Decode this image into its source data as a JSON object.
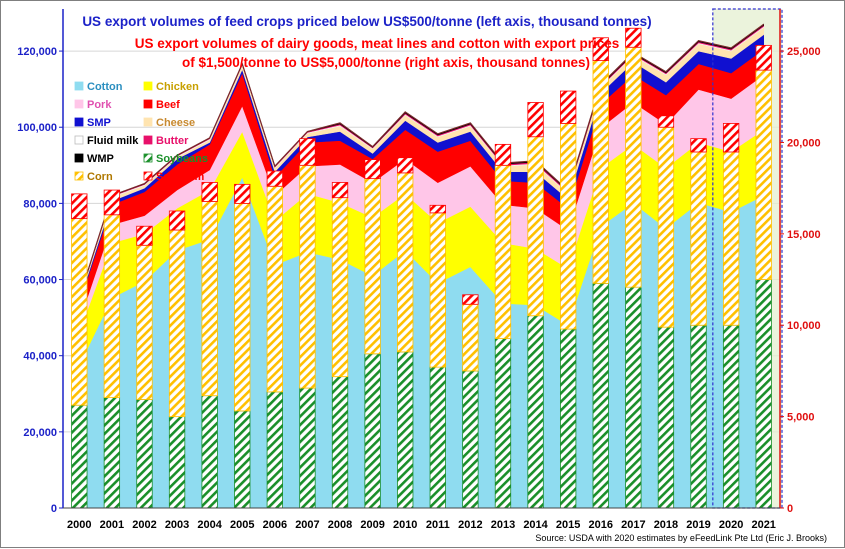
{
  "chart_data": {
    "type": "area",
    "title": "US export volumes of feed crops priced below US$500/tonne (left axis, thousand tonnes)",
    "title2_line1": "US export volumes of dairy goods, meat lines and cotton with export prices",
    "title2_line2": "of $1,500/tonne to US$5,000/tonne (right axis, thousand tonnes)",
    "source": "Source: USDA with 2020 estimates by eFeedLink Pte Ltd (Eric J. Brooks)",
    "categories": [
      "2000",
      "2001",
      "2002",
      "2003",
      "2004",
      "2005",
      "2006",
      "2007",
      "2008",
      "2009",
      "2010",
      "2011",
      "2012",
      "2013",
      "2014",
      "2015",
      "2016",
      "2017",
      "2018",
      "2019",
      "2020",
      "2021"
    ],
    "left_axis": {
      "min": 0,
      "max": 130000,
      "ticks": [
        0,
        20000,
        40000,
        60000,
        80000,
        100000,
        120000
      ],
      "tick_labels": [
        "0",
        "20,000",
        "40,000",
        "60,000",
        "80,000",
        "100,000",
        "120,000"
      ]
    },
    "right_axis": {
      "min": 0,
      "max": 27083,
      "ticks": [
        0,
        5000,
        10000,
        15000,
        20000,
        25000
      ],
      "tick_labels": [
        "0",
        "5,000",
        "10,000",
        "15,000",
        "20,000",
        "25,000"
      ]
    },
    "area_series": [
      {
        "name": "Cotton",
        "color": "#8fdcf0",
        "values": [
          7800,
          11500,
          12400,
          14100,
          14700,
          18100,
          13300,
          14000,
          13600,
          12700,
          14100,
          12300,
          13200,
          11200,
          11100,
          10000,
          15400,
          16700,
          15300,
          16700,
          16200,
          17100
        ]
      },
      {
        "name": "Chicken",
        "color": "#ffff00",
        "values": [
          1800,
          3000,
          2600,
          2300,
          2700,
          2500,
          2400,
          3200,
          3100,
          3200,
          3100,
          3300,
          3300,
          3300,
          3100,
          3100,
          3200,
          3200,
          3300,
          3300,
          3300,
          3600
        ]
      },
      {
        "name": "Pork",
        "color": "#ffc6e8",
        "values": [
          600,
          1000,
          1000,
          1000,
          1100,
          1400,
          1400,
          1500,
          2100,
          1900,
          1900,
          2200,
          2200,
          2100,
          2200,
          2100,
          2200,
          2300,
          2400,
          2900,
          2900,
          3000
        ]
      },
      {
        "name": "Beef",
        "color": "#ff0000",
        "values": [
          1000,
          1100,
          1300,
          1400,
          1400,
          1800,
          1000,
          1300,
          1300,
          1300,
          1600,
          1700,
          1400,
          1300,
          1400,
          1200,
          1300,
          1500,
          1600,
          1400,
          1400,
          1400
        ]
      },
      {
        "name": "SMP",
        "color": "#1010d0",
        "values": [
          100,
          200,
          200,
          300,
          100,
          200,
          300,
          300,
          500,
          300,
          500,
          500,
          500,
          500,
          600,
          500,
          600,
          700,
          700,
          700,
          800,
          800
        ]
      },
      {
        "name": "Cheese",
        "color": "#ffe4b0",
        "values": [
          100,
          200,
          150,
          100,
          150,
          200,
          200,
          200,
          300,
          250,
          300,
          300,
          300,
          300,
          400,
          300,
          300,
          350,
          400,
          400,
          400,
          400
        ]
      },
      {
        "name": "Fluid milk",
        "color": "#ffffff",
        "values": [
          50,
          50,
          50,
          50,
          50,
          50,
          50,
          50,
          50,
          50,
          50,
          50,
          50,
          50,
          50,
          50,
          50,
          50,
          50,
          50,
          50,
          50
        ]
      },
      {
        "name": "Butter",
        "color": "#e8106a",
        "values": [
          30,
          30,
          30,
          30,
          30,
          30,
          30,
          30,
          60,
          30,
          60,
          60,
          60,
          60,
          80,
          60,
          60,
          60,
          60,
          60,
          60,
          60
        ]
      },
      {
        "name": "WMP",
        "color": "#000000",
        "values": [
          20,
          20,
          20,
          20,
          20,
          20,
          20,
          20,
          60,
          40,
          60,
          60,
          60,
          60,
          60,
          60,
          60,
          60,
          60,
          60,
          60,
          60
        ]
      }
    ],
    "bar_series": [
      {
        "name": "Soybeans",
        "color": "#1a8f2a",
        "values": [
          27000,
          29000,
          28500,
          24000,
          29500,
          25500,
          30500,
          31500,
          34500,
          40500,
          41000,
          37000,
          36000,
          44500,
          50500,
          47000,
          59000,
          58000,
          47500,
          48000,
          48000,
          60000
        ]
      },
      {
        "name": "Corn",
        "color": "#ffc000",
        "values": [
          49000,
          48000,
          40500,
          49000,
          51000,
          54500,
          54000,
          58500,
          47000,
          46000,
          47000,
          40500,
          17500,
          45500,
          47000,
          54000,
          58500,
          63000,
          52500,
          45500,
          45500,
          55000
        ]
      },
      {
        "name": "Sorghum",
        "color": "#ff0000",
        "values": [
          6500,
          6500,
          5000,
          5000,
          5000,
          5000,
          4000,
          7000,
          4000,
          5000,
          4000,
          2000,
          2500,
          5500,
          9000,
          8500,
          6000,
          5000,
          3000,
          3500,
          7500,
          6500
        ]
      }
    ],
    "legend": [
      {
        "name": "Cotton",
        "color": "#8fdcf0",
        "style": "area"
      },
      {
        "name": "Chicken",
        "color": "#ffff00",
        "style": "area"
      },
      {
        "name": "Pork",
        "color": "#ffc6e8",
        "style": "area"
      },
      {
        "name": "Beef",
        "color": "#ff0000",
        "style": "area"
      },
      {
        "name": "SMP",
        "color": "#1010d0",
        "style": "area"
      },
      {
        "name": "Cheese",
        "color": "#ffe4b0",
        "style": "area"
      },
      {
        "name": "Fluid milk",
        "color": "#ffffff",
        "style": "area"
      },
      {
        "name": "Butter",
        "color": "#e8106a",
        "style": "area"
      },
      {
        "name": "WMP",
        "color": "#000000",
        "style": "area"
      },
      {
        "name": "Soybeans",
        "color": "#1a8f2a",
        "style": "hatch"
      },
      {
        "name": "Corn",
        "color": "#ffc000",
        "style": "hatch"
      },
      {
        "name": "Sorghum",
        "color": "#ff0000",
        "style": "hatch"
      }
    ],
    "legend_placement": "top-left",
    "grid": true,
    "highlighted_categories": [
      "2020",
      "2021"
    ]
  }
}
